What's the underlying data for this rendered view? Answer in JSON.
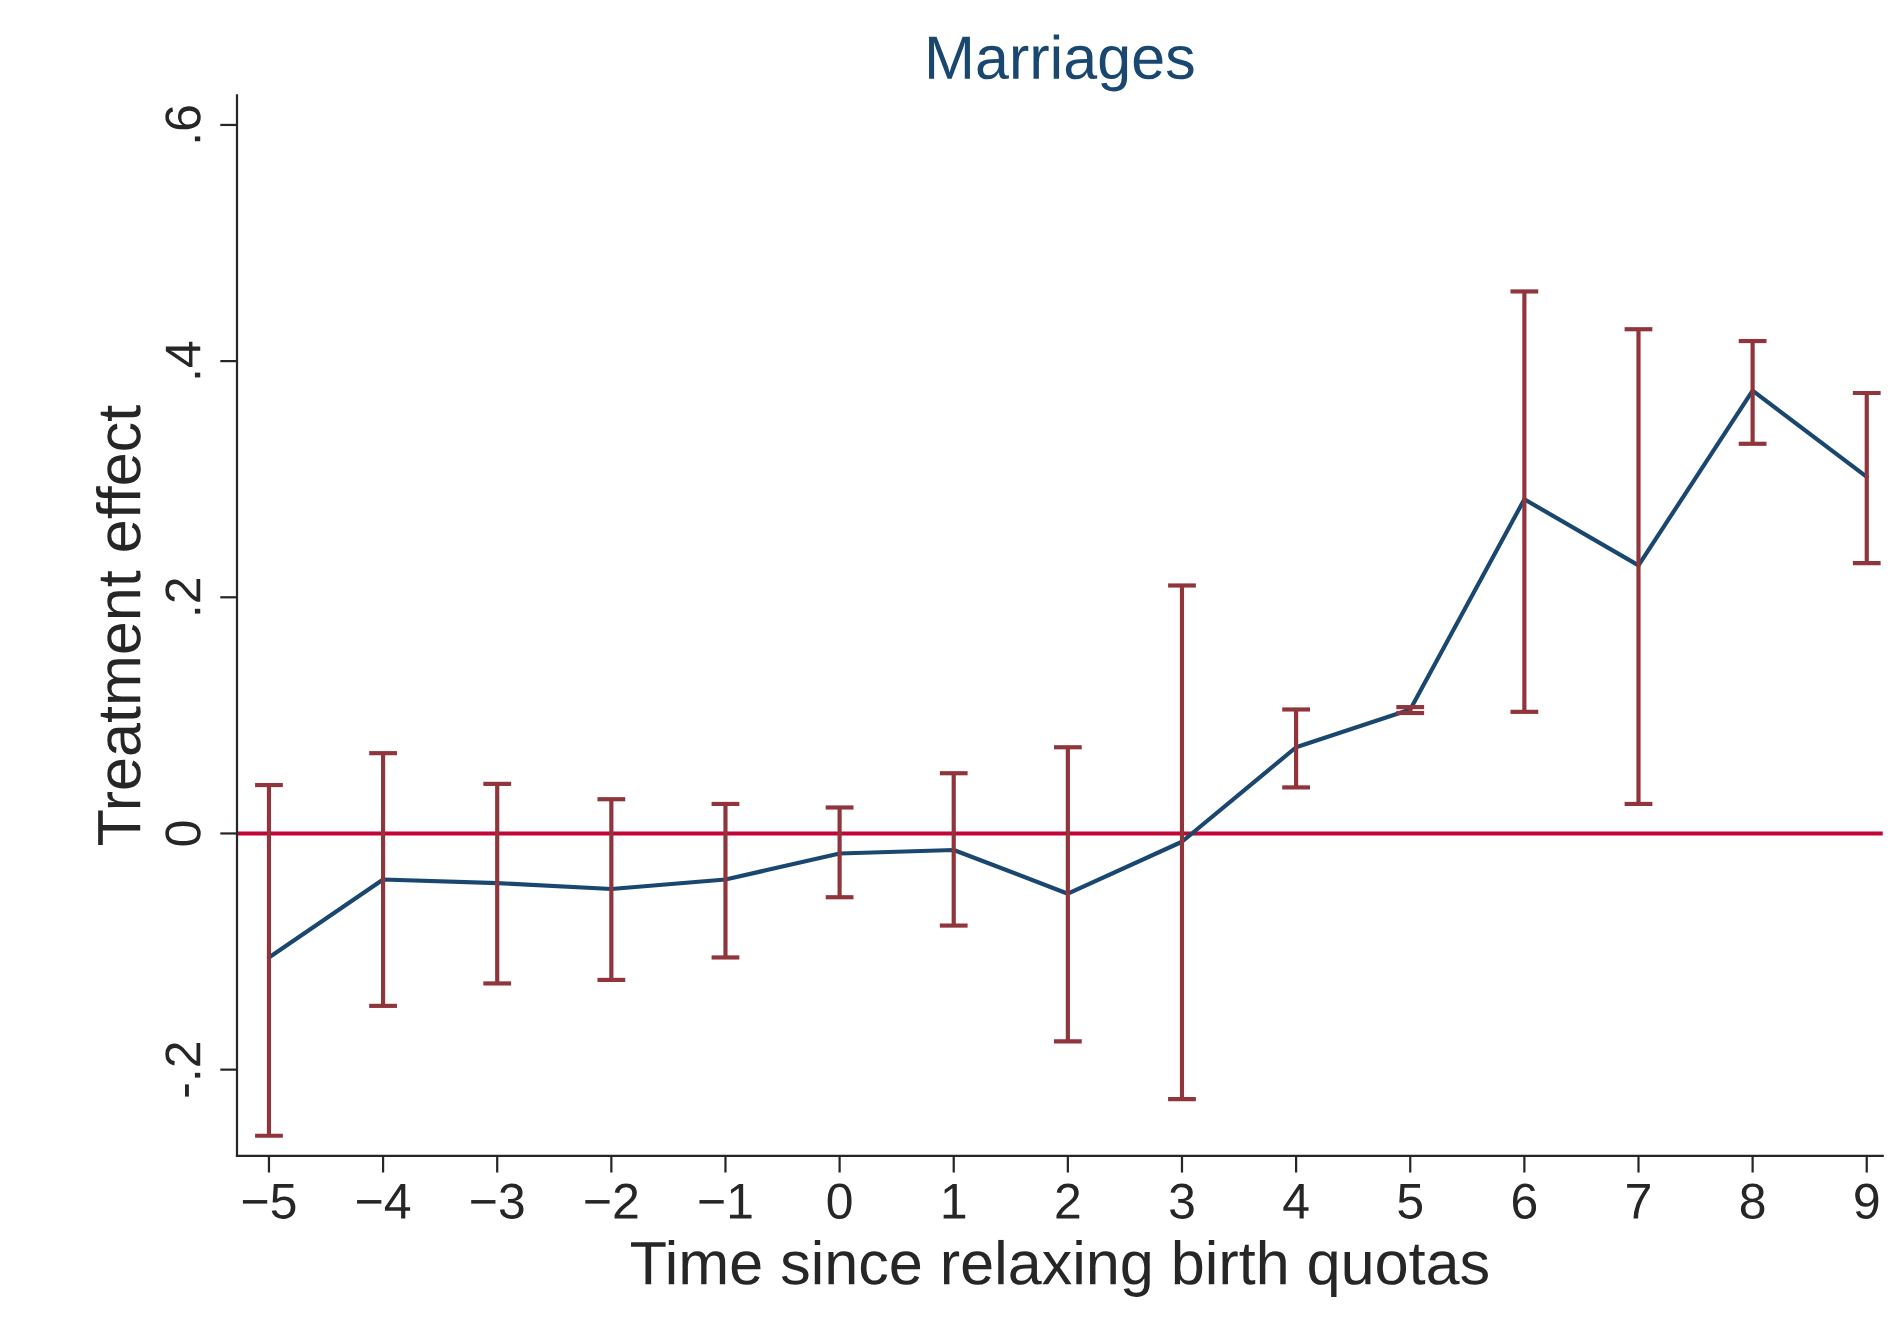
{
  "chart_data": {
    "type": "line",
    "title": "Marriages",
    "xlabel": "Time since relaxing birth quotas",
    "ylabel": "Treatment effect",
    "x": [
      -5,
      -4,
      -3,
      -2,
      -1,
      0,
      1,
      2,
      3,
      4,
      5,
      6,
      7,
      8,
      9
    ],
    "series": [
      {
        "color": "#1a476f",
        "values": [
          -0.105,
          -0.039,
          -0.042,
          -0.047,
          -0.039,
          -0.017,
          -0.014,
          -0.051,
          -0.007,
          0.073,
          0.105,
          0.283,
          0.227,
          0.375,
          0.302
        ],
        "errors": [
          [
            -0.256,
            0.041
          ],
          [
            -0.146,
            0.068
          ],
          [
            -0.127,
            0.042
          ],
          [
            -0.124,
            0.029
          ],
          [
            -0.105,
            0.025
          ],
          [
            -0.054,
            0.022
          ],
          [
            -0.078,
            0.051
          ],
          [
            -0.176,
            0.073
          ],
          [
            -0.225,
            0.21
          ],
          [
            0.039,
            0.105
          ],
          [
            0.102,
            0.107
          ],
          [
            0.103,
            0.459
          ],
          [
            0.025,
            0.427
          ],
          [
            0.33,
            0.417
          ],
          [
            0.229,
            0.373
          ]
        ]
      }
    ],
    "xlim": [
      -5.28,
      9.14
    ],
    "ylim": [
      -0.273,
      0.625
    ],
    "xticks": [
      {
        "value": -5,
        "label": "−5"
      },
      {
        "value": -4,
        "label": "−4"
      },
      {
        "value": -3,
        "label": "−3"
      },
      {
        "value": -2,
        "label": "−2"
      },
      {
        "value": -1,
        "label": "−1"
      },
      0,
      1,
      2,
      3,
      4,
      5,
      6,
      7,
      8,
      9
    ],
    "yticks": [
      {
        "value": -0.2,
        "label": "-.2"
      },
      0,
      {
        "value": 0.2,
        "label": ".2"
      },
      {
        "value": 0.4,
        "label": ".4"
      },
      {
        "value": 0.6,
        "label": ".6"
      }
    ],
    "ref_lines": [
      {
        "axis": "y",
        "value": 0,
        "color": "#c10534"
      }
    ],
    "grid": false,
    "legend": false,
    "marker": "none",
    "line_style": "solid"
  }
}
